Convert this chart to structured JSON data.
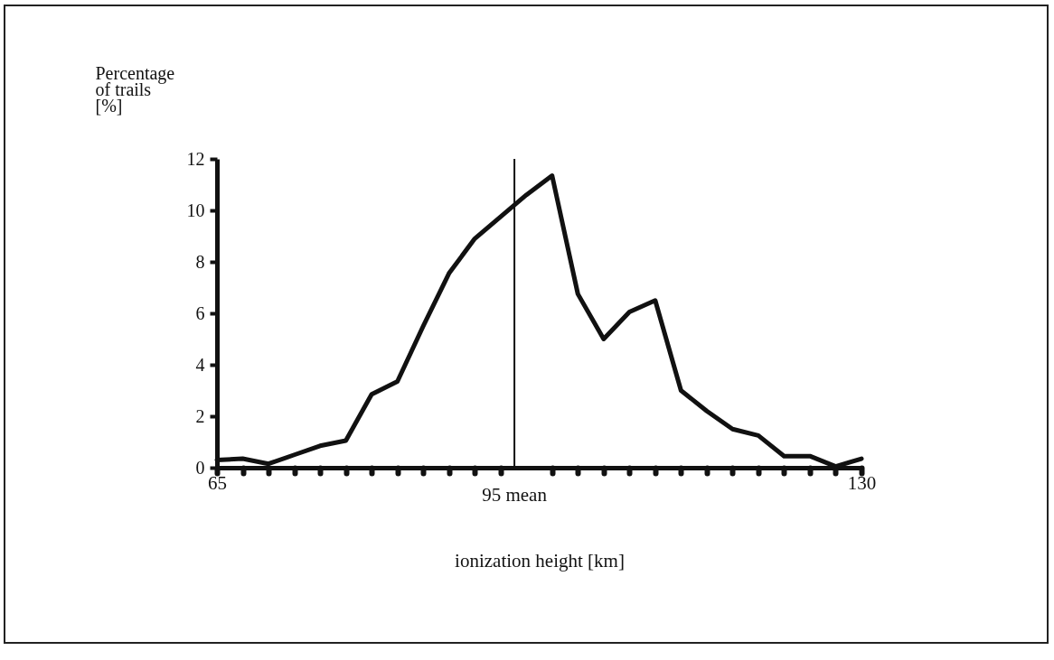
{
  "chart_data": {
    "type": "line",
    "ylabel": "Percentage\nof trails\n[%]",
    "xlabel": "ionization height [km]",
    "x": [
      65,
      67.6,
      70.2,
      72.8,
      75.4,
      78,
      80.6,
      83.2,
      85.8,
      88.4,
      91,
      93.6,
      96.2,
      98.8,
      101.4,
      104,
      106.6,
      109.2,
      111.8,
      114.4,
      117,
      119.6,
      122.2,
      124.8,
      127.4,
      130
    ],
    "series": [
      {
        "color": "#111111",
        "values": [
          0.3,
          0.35,
          0.15,
          0.5,
          0.85,
          1.05,
          2.85,
          3.35,
          5.5,
          7.55,
          8.9,
          9.75,
          10.6,
          11.35,
          6.75,
          5.0,
          6.05,
          6.5,
          3.0,
          2.2,
          1.5,
          1.25,
          0.45,
          0.45,
          0.05,
          0.35
        ]
      }
    ],
    "xlim": [
      65,
      130
    ],
    "xticks": [
      65,
      {
        "value": 67.6,
        "label": null
      },
      {
        "value": 70.2,
        "label": null
      },
      {
        "value": 72.8,
        "label": null
      },
      {
        "value": 75.4,
        "label": null
      },
      {
        "value": 78,
        "label": null
      },
      {
        "value": 80.6,
        "label": null
      },
      {
        "value": 83.2,
        "label": null
      },
      {
        "value": 85.8,
        "label": null
      },
      {
        "value": 88.4,
        "label": null
      },
      {
        "value": 91,
        "label": null
      },
      {
        "value": 93.6,
        "label": null
      },
      {
        "value": 98.8,
        "label": null
      },
      {
        "value": 101.4,
        "label": null
      },
      {
        "value": 104,
        "label": null
      },
      {
        "value": 106.6,
        "label": null
      },
      {
        "value": 109.2,
        "label": null
      },
      {
        "value": 111.8,
        "label": null
      },
      {
        "value": 114.4,
        "label": null
      },
      {
        "value": 117,
        "label": null
      },
      {
        "value": 119.6,
        "label": null
      },
      {
        "value": 122.2,
        "label": null
      },
      {
        "value": 124.8,
        "label": null
      },
      {
        "value": 127.4,
        "label": null
      },
      130
    ],
    "ylim": [
      0,
      12
    ],
    "yticks": [
      0,
      2,
      4,
      6,
      8,
      10,
      12
    ],
    "ref_lines": [
      {
        "axis": "x",
        "value": 95,
        "label": "95 mean",
        "color": "#111111"
      }
    ],
    "grid": false,
    "line_style": "solid"
  }
}
